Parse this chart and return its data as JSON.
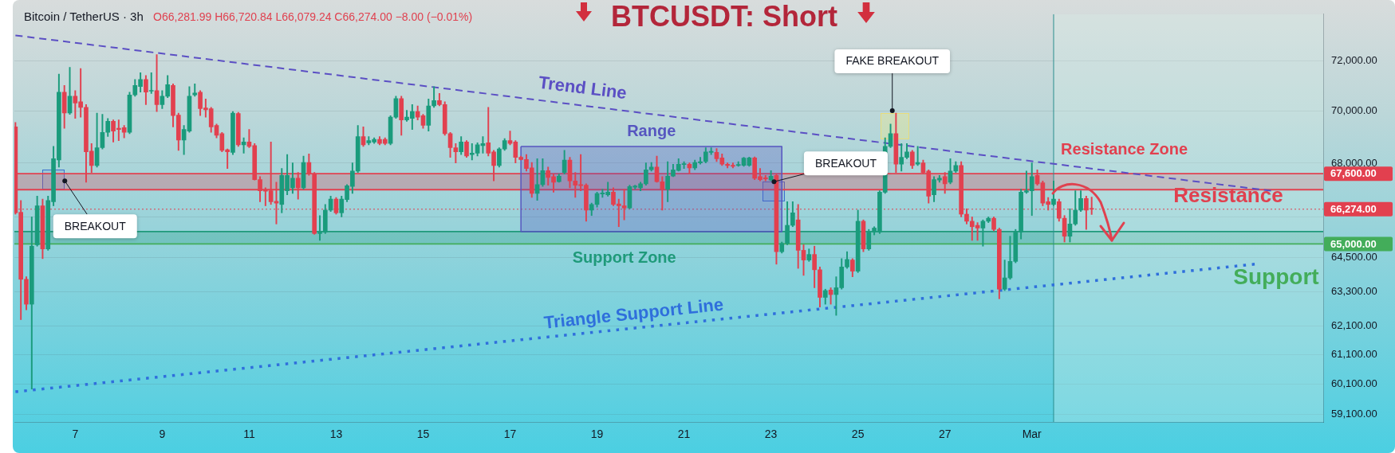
{
  "chart_data": {
    "type": "candlestick",
    "title": "BTCUSDT: Short",
    "x": [
      5.625,
      5.75,
      5.875,
      6,
      6.125,
      6.25,
      6.375,
      6.5,
      6.625,
      6.75,
      6.875,
      7,
      7.125,
      7.25,
      7.375,
      7.5,
      7.625,
      7.75,
      7.875,
      8,
      8.125,
      8.25,
      8.375,
      8.5,
      8.625,
      8.75,
      8.875,
      9,
      9.125,
      9.25,
      9.375,
      9.5,
      9.625,
      9.75,
      9.875,
      10,
      10.125,
      10.25,
      10.375,
      10.5,
      10.625,
      10.75,
      10.875,
      11,
      11.125,
      11.25,
      11.375,
      11.5,
      11.625,
      11.75,
      11.875,
      12,
      12.125,
      12.25,
      12.375,
      12.5,
      12.625,
      12.75,
      12.875,
      13,
      13.125,
      13.25,
      13.375,
      13.5,
      13.625,
      13.75,
      13.875,
      14,
      14.125,
      14.25,
      14.375,
      14.5,
      14.625,
      14.75,
      14.875,
      15,
      15.125,
      15.25,
      15.375,
      15.5,
      15.625,
      15.75,
      15.875,
      16,
      16.125,
      16.25,
      16.375,
      16.5,
      16.625,
      16.75,
      16.875,
      17,
      17.125,
      17.25,
      17.375,
      17.5,
      17.625,
      17.75,
      17.875,
      18,
      18.125,
      18.25,
      18.375,
      18.5,
      18.625,
      18.75,
      18.875,
      19,
      19.125,
      19.25,
      19.375,
      19.5,
      19.625,
      19.75,
      19.875,
      20,
      20.125,
      20.25,
      20.375,
      20.5,
      20.625,
      20.75,
      20.875,
      21,
      21.125,
      21.25,
      21.375,
      21.5,
      21.625,
      21.75,
      21.875,
      22,
      22.125,
      22.25,
      22.375,
      22.5,
      22.625,
      22.75,
      22.875,
      23,
      23.125,
      23.25,
      23.375,
      23.5,
      23.625,
      23.75,
      23.875,
      24,
      24.125,
      24.25,
      24.375,
      24.5,
      24.625,
      24.75,
      24.875,
      25,
      25.125,
      25.25,
      25.375,
      25.5,
      25.625,
      25.75,
      25.875,
      26,
      26.125,
      26.25,
      26.375,
      26.5,
      26.625,
      26.75,
      26.875,
      27,
      27.125,
      27.25,
      27.375,
      27.5,
      27.625,
      27.75,
      27.875,
      28,
      28.125,
      28.25,
      28.375,
      28.5,
      28.625,
      28.75,
      28.875,
      29,
      29.125,
      29.25,
      29.375,
      29.5,
      29.625,
      29.75,
      29.875,
      30,
      30.125,
      30.25,
      30.375
    ],
    "ohlc": [
      [
        69390,
        69560,
        66090,
        66140
      ],
      [
        66160,
        66600,
        62310,
        63730
      ],
      [
        63730,
        63820,
        62650,
        62850
      ],
      [
        62850,
        65990,
        59940,
        64920
      ],
      [
        64970,
        66760,
        64920,
        66400
      ],
      [
        66400,
        66650,
        64470,
        64820
      ],
      [
        64820,
        66760,
        64770,
        66600
      ],
      [
        66550,
        68640,
        66400,
        68170
      ],
      [
        68120,
        71470,
        67850,
        70750
      ],
      [
        70750,
        71020,
        69340,
        69930
      ],
      [
        69930,
        71740,
        69880,
        70590
      ],
      [
        70590,
        70810,
        69720,
        70320
      ],
      [
        70370,
        71690,
        69770,
        70150
      ],
      [
        70150,
        70260,
        67280,
        68430
      ],
      [
        68460,
        68750,
        67650,
        67910
      ],
      [
        67910,
        69930,
        67850,
        68590
      ],
      [
        68590,
        69880,
        68540,
        69180
      ],
      [
        69180,
        69720,
        69020,
        69610
      ],
      [
        69610,
        69660,
        68810,
        69230
      ],
      [
        69340,
        69660,
        68860,
        69290
      ],
      [
        69360,
        69450,
        68970,
        69180
      ],
      [
        69180,
        70750,
        69130,
        70640
      ],
      [
        70640,
        71250,
        70590,
        71020
      ],
      [
        70970,
        71520,
        70750,
        71250
      ],
      [
        71250,
        71410,
        70260,
        70750
      ],
      [
        70790,
        71520,
        70700,
        70820
      ],
      [
        70810,
        72250,
        69990,
        70260
      ],
      [
        70260,
        70810,
        70100,
        70590
      ],
      [
        70590,
        71410,
        70530,
        71050
      ],
      [
        71020,
        71080,
        69390,
        69830
      ],
      [
        69850,
        69930,
        68490,
        68880
      ],
      [
        68880,
        69450,
        68330,
        69290
      ],
      [
        69230,
        70970,
        69180,
        70590
      ],
      [
        70640,
        71080,
        70590,
        70720
      ],
      [
        70750,
        70810,
        69830,
        70100
      ],
      [
        70130,
        70480,
        69770,
        70060
      ],
      [
        70100,
        70150,
        69180,
        69390
      ],
      [
        69450,
        69500,
        68970,
        69070
      ],
      [
        69130,
        69180,
        68430,
        68490
      ],
      [
        68510,
        68540,
        67800,
        68430
      ],
      [
        68410,
        69990,
        68330,
        69930
      ],
      [
        69910,
        69960,
        68640,
        68700
      ],
      [
        68700,
        68970,
        68380,
        68810
      ],
      [
        68810,
        69290,
        68590,
        68640
      ],
      [
        68670,
        68750,
        67360,
        67380
      ],
      [
        67380,
        67490,
        66550,
        66960
      ],
      [
        66990,
        67070,
        66400,
        66940
      ],
      [
        66960,
        68810,
        66450,
        66550
      ],
      [
        66570,
        67280,
        65730,
        66500
      ],
      [
        66450,
        67800,
        66140,
        67540
      ],
      [
        66960,
        68330,
        66810,
        67540
      ],
      [
        67070,
        68010,
        66860,
        67430
      ],
      [
        67430,
        67650,
        66650,
        67070
      ],
      [
        67070,
        68270,
        67020,
        68030
      ],
      [
        68030,
        68350,
        67540,
        67590
      ],
      [
        67590,
        67650,
        65350,
        65380
      ],
      [
        65380,
        66040,
        65130,
        65430
      ],
      [
        65430,
        66450,
        65380,
        66240
      ],
      [
        66240,
        66760,
        66190,
        66650
      ],
      [
        66650,
        66710,
        66090,
        66140
      ],
      [
        66140,
        66760,
        65990,
        66650
      ],
      [
        66630,
        67190,
        66550,
        67150
      ],
      [
        67120,
        68010,
        66860,
        67700
      ],
      [
        67700,
        69450,
        67650,
        69020
      ],
      [
        69020,
        69390,
        68640,
        68700
      ],
      [
        68780,
        69020,
        68700,
        68860
      ],
      [
        68810,
        68970,
        68750,
        68910
      ],
      [
        68910,
        69020,
        68700,
        68750
      ],
      [
        68910,
        68970,
        68700,
        68750
      ],
      [
        68750,
        69830,
        68700,
        69770
      ],
      [
        69770,
        70590,
        69720,
        70500
      ],
      [
        70500,
        70590,
        69070,
        69660
      ],
      [
        69660,
        70040,
        69610,
        69770
      ],
      [
        69720,
        70260,
        69290,
        69990
      ],
      [
        69990,
        70210,
        69660,
        69770
      ],
      [
        69830,
        69880,
        69340,
        69450
      ],
      [
        69450,
        70480,
        69230,
        70210
      ],
      [
        70210,
        70970,
        70150,
        70420
      ],
      [
        70420,
        70700,
        70210,
        70260
      ],
      [
        70260,
        70370,
        69070,
        69130
      ],
      [
        69130,
        69180,
        68220,
        68590
      ],
      [
        68590,
        68750,
        68010,
        68430
      ],
      [
        68430,
        69020,
        68330,
        68810
      ],
      [
        68810,
        68860,
        68220,
        68270
      ],
      [
        68330,
        68750,
        68120,
        68380
      ],
      [
        68380,
        68780,
        68270,
        68700
      ],
      [
        68670,
        69020,
        68380,
        68750
      ],
      [
        68780,
        70150,
        68270,
        68380
      ],
      [
        68430,
        68490,
        67330,
        67910
      ],
      [
        67910,
        68590,
        67850,
        68540
      ],
      [
        68540,
        68940,
        68490,
        68860
      ],
      [
        68860,
        69230,
        68700,
        68750
      ],
      [
        68810,
        68860,
        68010,
        68220
      ],
      [
        68220,
        68270,
        68120,
        68140
      ],
      [
        68140,
        68330,
        67700,
        67800
      ],
      [
        67820,
        68030,
        66710,
        66860
      ],
      [
        66860,
        68170,
        66600,
        67190
      ],
      [
        67190,
        68170,
        67120,
        67720
      ],
      [
        67720,
        67850,
        67170,
        67460
      ],
      [
        67490,
        67590,
        66910,
        67280
      ],
      [
        67300,
        67590,
        67280,
        67510
      ],
      [
        67650,
        68490,
        67590,
        68120
      ],
      [
        68120,
        68220,
        67070,
        67330
      ],
      [
        67330,
        67650,
        66710,
        67170
      ],
      [
        67190,
        68330,
        66960,
        67150
      ],
      [
        67170,
        67220,
        65830,
        66240
      ],
      [
        66240,
        66500,
        66040,
        66450
      ],
      [
        66450,
        66910,
        66350,
        66860
      ],
      [
        66840,
        67020,
        66710,
        66880
      ],
      [
        66810,
        67280,
        66760,
        66910
      ],
      [
        66910,
        67070,
        66400,
        66450
      ],
      [
        66470,
        66650,
        65630,
        66400
      ],
      [
        66400,
        67020,
        65880,
        66320
      ],
      [
        66320,
        67170,
        66290,
        67120
      ],
      [
        67090,
        67170,
        67020,
        67140
      ],
      [
        67070,
        67280,
        66960,
        67220
      ],
      [
        67220,
        68010,
        67170,
        67750
      ],
      [
        67750,
        68030,
        67700,
        67850
      ],
      [
        67850,
        68270,
        67280,
        67300
      ],
      [
        67300,
        67490,
        66240,
        67020
      ],
      [
        67020,
        68060,
        66550,
        67510
      ],
      [
        67510,
        67960,
        67490,
        67750
      ],
      [
        67720,
        68170,
        67700,
        67960
      ],
      [
        67950,
        68060,
        67800,
        67970
      ],
      [
        67960,
        68010,
        67590,
        67820
      ],
      [
        67820,
        68120,
        67750,
        68030
      ],
      [
        68010,
        68220,
        67960,
        68060
      ],
      [
        68060,
        68590,
        68010,
        68430
      ],
      [
        68410,
        68590,
        68330,
        68450
      ],
      [
        68410,
        68560,
        68060,
        68170
      ],
      [
        68200,
        68350,
        67910,
        67960
      ],
      [
        67960,
        68010,
        67820,
        67910
      ],
      [
        67920,
        68010,
        67820,
        67880
      ],
      [
        67910,
        68060,
        67880,
        67950
      ],
      [
        67920,
        68220,
        67880,
        68190
      ],
      [
        67920,
        68230,
        67880,
        68200
      ],
      [
        68200,
        68240,
        67380,
        67430
      ],
      [
        67490,
        67800,
        67330,
        67380
      ],
      [
        67450,
        67540,
        67330,
        67410
      ],
      [
        67360,
        67720,
        67330,
        67510
      ],
      [
        67540,
        67590,
        64270,
        64720
      ],
      [
        64720,
        65070,
        64670,
        65020
      ],
      [
        65020,
        66550,
        64970,
        65680
      ],
      [
        65680,
        66550,
        65630,
        66140
      ],
      [
        65880,
        66450,
        64120,
        64770
      ],
      [
        64770,
        64970,
        63870,
        64420
      ],
      [
        64420,
        64820,
        64370,
        64620
      ],
      [
        64620,
        64920,
        63430,
        64070
      ],
      [
        64070,
        64170,
        62750,
        63090
      ],
      [
        63090,
        63380,
        62850,
        63330
      ],
      [
        63350,
        63430,
        62850,
        63190
      ],
      [
        63190,
        63820,
        62460,
        63430
      ],
      [
        63430,
        64470,
        63380,
        64170
      ],
      [
        64170,
        64720,
        64120,
        64440
      ],
      [
        64420,
        64470,
        63820,
        64020
      ],
      [
        64020,
        66240,
        63970,
        65830
      ],
      [
        65830,
        65880,
        64720,
        64820
      ],
      [
        64820,
        65530,
        64770,
        65430
      ],
      [
        65430,
        65630,
        65330,
        65580
      ],
      [
        65430,
        66960,
        65380,
        66910
      ],
      [
        66910,
        68970,
        66860,
        68640
      ],
      [
        68640,
        69500,
        68590,
        69130
      ],
      [
        69130,
        69930,
        67650,
        67960
      ],
      [
        67960,
        68750,
        67700,
        68220
      ],
      [
        68220,
        68750,
        68170,
        68430
      ],
      [
        68430,
        68490,
        67800,
        67910
      ],
      [
        67960,
        68640,
        67910,
        68030
      ],
      [
        68010,
        68120,
        67590,
        67650
      ],
      [
        67700,
        67750,
        66500,
        66760
      ],
      [
        66810,
        67490,
        66550,
        67380
      ],
      [
        67360,
        67540,
        67280,
        67430
      ],
      [
        67490,
        67650,
        66860,
        67220
      ],
      [
        67280,
        68170,
        67220,
        67700
      ],
      [
        67700,
        68060,
        67650,
        67910
      ],
      [
        67910,
        68060,
        65990,
        66090
      ],
      [
        66090,
        66290,
        65730,
        65830
      ],
      [
        65830,
        65990,
        65130,
        65630
      ],
      [
        65680,
        65780,
        65130,
        65580
      ],
      [
        65580,
        65880,
        64920,
        65830
      ],
      [
        65830,
        65990,
        65780,
        65940
      ],
      [
        65940,
        65990,
        65480,
        65530
      ],
      [
        65530,
        65580,
        63040,
        63380
      ],
      [
        63380,
        64420,
        63330,
        63780
      ],
      [
        63780,
        65280,
        63730,
        64370
      ],
      [
        64370,
        65530,
        64320,
        65430
      ],
      [
        65430,
        67020,
        65180,
        66910
      ],
      [
        66910,
        67700,
        66860,
        66960
      ],
      [
        66960,
        68010,
        66040,
        67490
      ],
      [
        67540,
        67750,
        67170,
        67220
      ],
      [
        67260,
        67330,
        66400,
        66500
      ],
      [
        66550,
        66710,
        66240,
        66450
      ],
      [
        66450,
        67330,
        66400,
        66650
      ],
      [
        66550,
        66650,
        65830,
        65940
      ],
      [
        65940,
        66040,
        65070,
        65280
      ],
      [
        65280,
        66290,
        65070,
        65730
      ],
      [
        65730,
        66960,
        65680,
        66240
      ],
      [
        66240,
        66960,
        66190,
        66670
      ],
      [
        66670,
        66760,
        65530,
        66240
      ],
      [
        66281.99,
        66720.84,
        66079.24,
        66274
      ]
    ],
    "colors": [
      "#e2404f",
      "#e2404f",
      "#e2404f",
      "#1a9b7c",
      "#1a9b7c",
      "#e2404f",
      "#1a9b7c",
      "#1a9b7c",
      "#1a9b7c",
      "#e2404f",
      "#1a9b7c",
      "#e2404f",
      "#e2404f",
      "#e2404f",
      "#e2404f",
      "#1a9b7c",
      "#1a9b7c",
      "#1a9b7c",
      "#e2404f",
      "#e2404f",
      "#e2404f",
      "#1a9b7c",
      "#1a9b7c",
      "#1a9b7c",
      "#e2404f",
      "#1a9b7c",
      "#e2404f",
      "#1a9b7c",
      "#1a9b7c",
      "#e2404f",
      "#e2404f",
      "#1a9b7c",
      "#1a9b7c",
      "#1a9b7c",
      "#e2404f",
      "#e2404f",
      "#e2404f",
      "#e2404f",
      "#e2404f",
      "#e2404f",
      "#1a9b7c",
      "#e2404f",
      "#1a9b7c",
      "#e2404f",
      "#e2404f",
      "#e2404f",
      "#e2404f",
      "#e2404f",
      "#e2404f",
      "#1a9b7c",
      "#1a9b7c",
      "#1a9b7c",
      "#e2404f",
      "#1a9b7c",
      "#e2404f",
      "#e2404f",
      "#1a9b7c",
      "#1a9b7c",
      "#1a9b7c",
      "#e2404f",
      "#1a9b7c",
      "#1a9b7c",
      "#1a9b7c",
      "#1a9b7c",
      "#e2404f",
      "#1a9b7c",
      "#1a9b7c",
      "#e2404f",
      "#e2404f",
      "#1a9b7c",
      "#1a9b7c",
      "#e2404f",
      "#1a9b7c",
      "#1a9b7c",
      "#e2404f",
      "#e2404f",
      "#1a9b7c",
      "#1a9b7c",
      "#e2404f",
      "#e2404f",
      "#e2404f",
      "#e2404f",
      "#1a9b7c",
      "#e2404f",
      "#1a9b7c",
      "#1a9b7c",
      "#1a9b7c",
      "#e2404f",
      "#e2404f",
      "#1a9b7c",
      "#1a9b7c",
      "#e2404f",
      "#e2404f",
      "#e2404f",
      "#e2404f",
      "#e2404f",
      "#1a9b7c",
      "#1a9b7c",
      "#e2404f",
      "#e2404f",
      "#1a9b7c",
      "#1a9b7c",
      "#e2404f",
      "#e2404f",
      "#e2404f",
      "#e2404f",
      "#1a9b7c",
      "#1a9b7c",
      "#1a9b7c",
      "#1a9b7c",
      "#e2404f",
      "#e2404f",
      "#e2404f",
      "#1a9b7c",
      "#1a9b7c",
      "#1a9b7c",
      "#1a9b7c",
      "#1a9b7c",
      "#e2404f",
      "#e2404f",
      "#1a9b7c",
      "#1a9b7c",
      "#1a9b7c",
      "#1a9b7c",
      "#e2404f",
      "#1a9b7c",
      "#1a9b7c",
      "#1a9b7c",
      "#1a9b7c",
      "#e2404f",
      "#e2404f",
      "#e2404f",
      "#e2404f",
      "#1a9b7c",
      "#1a9b7c",
      "#1a9b7c",
      "#e2404f",
      "#e2404f",
      "#e2404f",
      "#1a9b7c",
      "#e2404f",
      "#1a9b7c",
      "#1a9b7c",
      "#1a9b7c",
      "#e2404f",
      "#e2404f",
      "#1a9b7c",
      "#e2404f",
      "#e2404f",
      "#1a9b7c",
      "#e2404f",
      "#1a9b7c",
      "#1a9b7c",
      "#1a9b7c",
      "#e2404f",
      "#1a9b7c",
      "#e2404f",
      "#1a9b7c",
      "#1a9b7c",
      "#1a9b7c",
      "#1a9b7c",
      "#1a9b7c",
      "#e2404f",
      "#1a9b7c",
      "#1a9b7c",
      "#e2404f",
      "#1a9b7c",
      "#e2404f",
      "#e2404f",
      "#1a9b7c",
      "#1a9b7c",
      "#e2404f",
      "#1a9b7c",
      "#1a9b7c",
      "#e2404f",
      "#e2404f",
      "#e2404f",
      "#e2404f",
      "#1a9b7c",
      "#1a9b7c",
      "#e2404f",
      "#e2404f",
      "#1a9b7c",
      "#1a9b7c",
      "#1a9b7c",
      "#1a9b7c",
      "#1a9b7c",
      "#1a9b7c",
      "#e2404f",
      "#e2404f",
      "#e2404f",
      "#1a9b7c",
      "#e2404f",
      "#e2404f",
      "#1a9b7c",
      "#1a9b7c",
      "#1a9b7c",
      "#e2404f",
      "#e2404f"
    ],
    "series": [
      {
        "name": "Trend Line",
        "type": "line",
        "color": "#5b4fc4",
        "line_style": "dashed",
        "x": [
          5.625,
          34.5
        ],
        "values": [
          73030,
          66960
        ]
      },
      {
        "name": "Triangle Support Line",
        "type": "line",
        "color": "#2f6fdc",
        "line_style": "dotted",
        "x": [
          5.625,
          34.125
        ],
        "values": [
          59850,
          64270
        ]
      },
      {
        "name": "Range",
        "type": "area",
        "color": "#5656c0",
        "x": [
          17.25,
          23.25,
          23.25,
          17.25,
          17.25
        ],
        "values": [
          68640,
          68640,
          65450,
          65450,
          68640
        ]
      }
    ],
    "ref_lines": [
      {
        "axis": "y",
        "value": 67600,
        "label": "67,600.00",
        "color": "#e2404f"
      },
      {
        "axis": "y",
        "value": 67000,
        "color": "#e2404f"
      },
      {
        "axis": "y",
        "value": 66274,
        "label": "66,274.00",
        "color": "#e2404f",
        "line_style": "dotted"
      },
      {
        "axis": "y",
        "value": 65450,
        "color": "#1f9a7a"
      },
      {
        "axis": "y",
        "value": 65000,
        "label": "65,000.00",
        "color": "#43ad5a"
      },
      {
        "axis": "x",
        "value": 29.5,
        "color": "#2a8f8f"
      }
    ],
    "bands": [
      {
        "axis": "y",
        "from": 67000,
        "to": 67600,
        "label": "Resistance Zone",
        "color": "#e2404f"
      },
      {
        "axis": "y",
        "from": 65000,
        "to": 65450,
        "label": "Support Zone",
        "color": "#1f9a7a"
      },
      {
        "axis": "x",
        "from": 29.5,
        "to": 35.7,
        "color": "#d8efe8"
      }
    ],
    "annotations": [
      "Bitcoin / TetherUS · 3h",
      "O66,281.99 H66,720.84 L66,079.24 C66,274.00 −8.00 (−0.01%)",
      {
        "text": "BREAKOUT",
        "x": 6.76,
        "y": 67330
      },
      {
        "text": "BREAKOUT",
        "x": 23.07,
        "y": 67300
      },
      {
        "text": "FAKE BREAKOUT",
        "x": 25.79,
        "y": 70020
      },
      "Resistance",
      "Support"
    ],
    "xlim": [
      5.6,
      35.7
    ],
    "xticks": [
      7,
      9,
      11,
      13,
      15,
      17,
      19,
      21,
      23,
      25,
      27,
      {
        "value": 29,
        "label": "Mar"
      }
    ],
    "ylim": [
      58850,
      73900
    ],
    "yticks": [
      {
        "value": 59100,
        "label": "59,100.00"
      },
      {
        "value": 60100,
        "label": "60,100.00"
      },
      {
        "value": 61100,
        "label": "61,100.00"
      },
      {
        "value": 62100,
        "label": "62,100.00"
      },
      {
        "value": 63300,
        "label": "63,300.00"
      },
      {
        "value": 64500,
        "label": "64,500.00"
      },
      {
        "value": 66000,
        "label": null
      },
      {
        "value": 68000,
        "label": "68,000.00"
      },
      {
        "value": 70000,
        "label": "70,000.00"
      },
      {
        "value": 72000,
        "label": "72,000.00"
      }
    ],
    "log": "y",
    "grid": "y"
  }
}
